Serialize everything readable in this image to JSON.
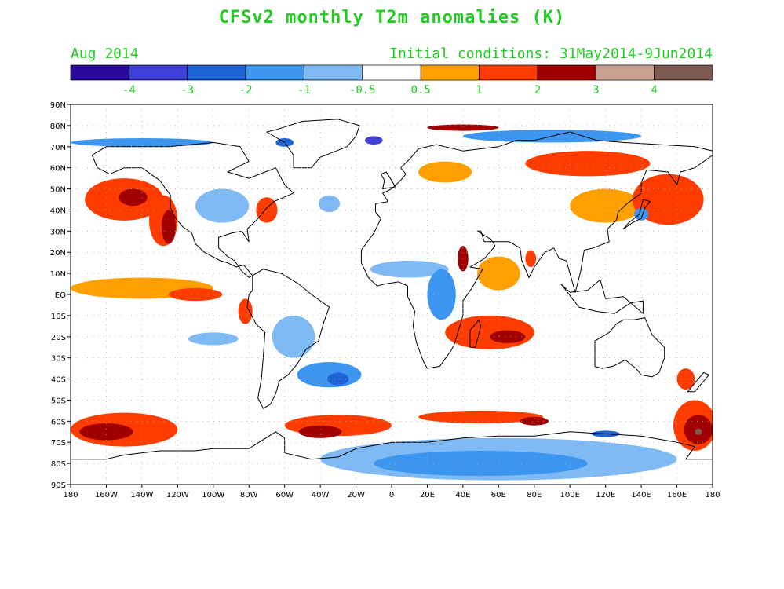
{
  "title": "CFSv2 monthly T2m anomalies (K)",
  "valid_month": "Aug 2014",
  "initial_conditions": "Initial conditions: 31May2014-9Jun2014",
  "colors": {
    "text": "#22cc22",
    "ocean_bg": "#ffffff",
    "grid": "#aaaaaa",
    "coast": "#000000"
  },
  "colorbar": {
    "bins": [
      {
        "color": "#2a0a9a"
      },
      {
        "color": "#3f3fd6"
      },
      {
        "color": "#1e64d6"
      },
      {
        "color": "#3c96f0"
      },
      {
        "color": "#7fbaf5"
      },
      {
        "color": "#ffffff"
      },
      {
        "color": "#ffa000"
      },
      {
        "color": "#ff3c00"
      },
      {
        "color": "#a00000"
      },
      {
        "color": "#c8a090"
      },
      {
        "color": "#7d5a50"
      }
    ],
    "labels": [
      "-4",
      "-3",
      "-2",
      "-1",
      "-0.5",
      "0.5",
      "1",
      "2",
      "3",
      "4"
    ]
  },
  "map": {
    "lat_labels": [
      "90N",
      "80N",
      "70N",
      "60N",
      "50N",
      "40N",
      "30N",
      "20N",
      "10N",
      "EQ",
      "10S",
      "20S",
      "30S",
      "40S",
      "50S",
      "60S",
      "70S",
      "80S",
      "90S"
    ],
    "lon_labels": [
      "180",
      "160W",
      "140W",
      "120W",
      "100W",
      "80W",
      "60W",
      "40W",
      "20W",
      "0",
      "20E",
      "40E",
      "60E",
      "80E",
      "100E",
      "120E",
      "140E",
      "160E",
      "180"
    ],
    "anomaly_regions": [
      {
        "name": "north-pacific-warm",
        "level": "1",
        "cx": -150,
        "cy": 45,
        "rx": 22,
        "ry": 10
      },
      {
        "name": "north-pacific-warm-core",
        "level": "2",
        "cx": -145,
        "cy": 46,
        "rx": 8,
        "ry": 4
      },
      {
        "name": "ne-pacific-california-warm",
        "level": "1",
        "cx": -128,
        "cy": 35,
        "rx": 8,
        "ry": 12
      },
      {
        "name": "ne-pacific-california-core",
        "level": "2",
        "cx": -125,
        "cy": 32,
        "rx": 4,
        "ry": 8
      },
      {
        "name": "tropical-pacific-warm",
        "level": "0.5",
        "cx": -140,
        "cy": 3,
        "rx": 40,
        "ry": 5
      },
      {
        "name": "east-pacific-eq-warm",
        "level": "1",
        "cx": -110,
        "cy": 0,
        "rx": 15,
        "ry": 3
      },
      {
        "name": "peru-coast-warm",
        "level": "1",
        "cx": -82,
        "cy": -8,
        "rx": 4,
        "ry": 6
      },
      {
        "name": "us-east-coast-warm",
        "level": "1",
        "cx": -70,
        "cy": 40,
        "rx": 6,
        "ry": 6
      },
      {
        "name": "north-america-cool",
        "level": "-0.5",
        "cx": -95,
        "cy": 42,
        "rx": 15,
        "ry": 8
      },
      {
        "name": "north-atlantic-cool",
        "level": "-0.5",
        "cx": -35,
        "cy": 43,
        "rx": 6,
        "ry": 4
      },
      {
        "name": "south-america-cool",
        "level": "-0.5",
        "cx": -55,
        "cy": -20,
        "rx": 12,
        "ry": 10
      },
      {
        "name": "south-atlantic-cool",
        "level": "-1",
        "cx": -35,
        "cy": -38,
        "rx": 18,
        "ry": 6
      },
      {
        "name": "south-atlantic-cool-core",
        "level": "-2",
        "cx": -30,
        "cy": -40,
        "rx": 6,
        "ry": 3
      },
      {
        "name": "south-pacific-cool",
        "level": "-0.5",
        "cx": -100,
        "cy": -21,
        "rx": 14,
        "ry": 3
      },
      {
        "name": "africa-sahel-cool",
        "level": "-0.5",
        "cx": 10,
        "cy": 12,
        "rx": 22,
        "ry": 4
      },
      {
        "name": "east-africa-cool",
        "level": "-1",
        "cx": 28,
        "cy": 0,
        "rx": 8,
        "ry": 12
      },
      {
        "name": "indian-ocean-warm",
        "level": "1",
        "cx": 55,
        "cy": -18,
        "rx": 25,
        "ry": 8
      },
      {
        "name": "madagascar-warm-core",
        "level": "2",
        "cx": 65,
        "cy": -20,
        "rx": 10,
        "ry": 3
      },
      {
        "name": "arabian-sea-warm",
        "level": "0.5",
        "cx": 60,
        "cy": 10,
        "rx": 12,
        "ry": 8
      },
      {
        "name": "red-sea-warm",
        "level": "2",
        "cx": 40,
        "cy": 17,
        "rx": 3,
        "ry": 6
      },
      {
        "name": "india-warm",
        "level": "1",
        "cx": 78,
        "cy": 17,
        "rx": 3,
        "ry": 4
      },
      {
        "name": "siberia-warm",
        "level": "1",
        "cx": 110,
        "cy": 62,
        "rx": 35,
        "ry": 6
      },
      {
        "name": "east-asia-warm",
        "level": "0.5",
        "cx": 120,
        "cy": 42,
        "rx": 20,
        "ry": 8
      },
      {
        "name": "nw-pacific-warm",
        "level": "1",
        "cx": 155,
        "cy": 45,
        "rx": 20,
        "ry": 12
      },
      {
        "name": "japan-cool",
        "level": "-1",
        "cx": 140,
        "cy": 38,
        "rx": 4,
        "ry": 3
      },
      {
        "name": "europe-warm",
        "level": "0.5",
        "cx": 30,
        "cy": 58,
        "rx": 15,
        "ry": 5
      },
      {
        "name": "arctic-cool-east",
        "level": "-1",
        "cx": 90,
        "cy": 75,
        "rx": 50,
        "ry": 3
      },
      {
        "name": "arctic-cool-west",
        "level": "-1",
        "cx": -140,
        "cy": 72,
        "rx": 40,
        "ry": 2
      },
      {
        "name": "kara-sea-warm",
        "level": "2",
        "cx": 40,
        "cy": 79,
        "rx": 20,
        "ry": 1.5
      },
      {
        "name": "greenland-sea-cool",
        "level": "-3",
        "cx": -10,
        "cy": 73,
        "rx": 5,
        "ry": 2
      },
      {
        "name": "baffin-cool",
        "level": "-2",
        "cx": -60,
        "cy": 72,
        "rx": 5,
        "ry": 2
      },
      {
        "name": "southern-ocean-pacific-warm",
        "level": "1",
        "cx": -150,
        "cy": -64,
        "rx": 30,
        "ry": 8
      },
      {
        "name": "southern-ocean-pacific-core",
        "level": "2",
        "cx": -160,
        "cy": -65,
        "rx": 15,
        "ry": 4
      },
      {
        "name": "southern-ocean-atlantic-warm",
        "level": "1",
        "cx": -30,
        "cy": -62,
        "rx": 30,
        "ry": 5
      },
      {
        "name": "southern-ocean-atlantic-core",
        "level": "2",
        "cx": -40,
        "cy": -65,
        "rx": 12,
        "ry": 3
      },
      {
        "name": "southern-ocean-indian-warm",
        "level": "1",
        "cx": 50,
        "cy": -58,
        "rx": 35,
        "ry": 3
      },
      {
        "name": "southern-ocean-indian-core",
        "level": "2",
        "cx": 80,
        "cy": -60,
        "rx": 8,
        "ry": 2
      },
      {
        "name": "ross-sea-warm",
        "level": "1",
        "cx": 170,
        "cy": -62,
        "rx": 12,
        "ry": 12
      },
      {
        "name": "ross-sea-core",
        "level": "2",
        "cx": 172,
        "cy": -64,
        "rx": 8,
        "ry": 7
      },
      {
        "name": "ross-sea-peak",
        "level": "4",
        "cx": 172,
        "cy": -65,
        "rx": 2,
        "ry": 1.5
      },
      {
        "name": "antarctica-cool",
        "level": "-0.5",
        "cx": 60,
        "cy": -78,
        "rx": 100,
        "ry": 10
      },
      {
        "name": "antarctica-cool-core",
        "level": "-1",
        "cx": 50,
        "cy": -80,
        "rx": 60,
        "ry": 6
      },
      {
        "name": "antarctic-coast-cool",
        "level": "-2",
        "cx": 120,
        "cy": -66,
        "rx": 8,
        "ry": 1.5
      },
      {
        "name": "australia-south-warm",
        "level": "1",
        "cx": 165,
        "cy": -40,
        "rx": 5,
        "ry": 5
      }
    ]
  }
}
